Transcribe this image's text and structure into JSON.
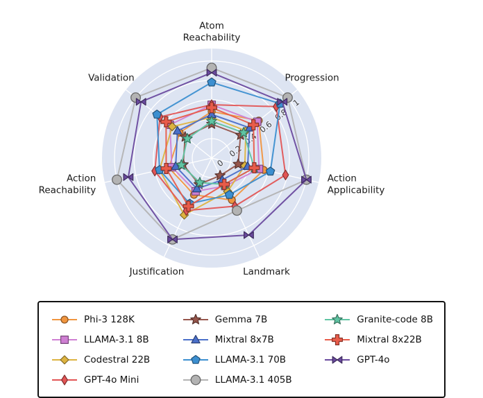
{
  "chart_data": {
    "type": "radar",
    "title": "",
    "categories": [
      "Atom Reachability",
      "Progression",
      "Action Applicability",
      "Landmark",
      "Justification",
      "Action Reachability",
      "Validation"
    ],
    "category_lines": [
      [
        "Atom",
        "Reachability"
      ],
      [
        "Progression"
      ],
      [
        "Action",
        "Applicability"
      ],
      [
        "Landmark"
      ],
      [
        "Justification"
      ],
      [
        "Action",
        "Reachability"
      ],
      [
        "Validation"
      ]
    ],
    "rlim": [
      0,
      1
    ],
    "ticks": [
      0,
      0.2,
      0.4,
      0.6,
      0.8,
      1
    ],
    "tick_labels": [
      "0",
      "0.2",
      "0.4",
      "0.6",
      "0.8",
      "1"
    ],
    "grid": true,
    "background_color": "#dde4f2",
    "grid_color": "#ffffff",
    "series": [
      {
        "name": "Phi-3 128K",
        "marker": "circle",
        "color": "#f0953f",
        "values": [
          0.48,
          0.62,
          0.55,
          0.48,
          0.42,
          0.45,
          0.42
        ]
      },
      {
        "name": "LLAMA-3.1 8B",
        "marker": "square",
        "color": "#cf7fd3",
        "values": [
          0.55,
          0.6,
          0.5,
          0.32,
          0.38,
          0.42,
          0.55
        ]
      },
      {
        "name": "Codestral 22B",
        "marker": "diamond",
        "color": "#ddb340",
        "values": [
          0.42,
          0.45,
          0.35,
          0.38,
          0.65,
          0.55,
          0.52
        ]
      },
      {
        "name": "GPT-4o Mini",
        "marker": "thin_diamond",
        "color": "#e25555",
        "values": [
          0.55,
          0.85,
          0.78,
          0.55,
          0.6,
          0.6,
          0.68
        ]
      },
      {
        "name": "Gemma 7B",
        "marker": "star",
        "color": "#96554b",
        "values": [
          0.35,
          0.38,
          0.28,
          0.2,
          0.3,
          0.3,
          0.35
        ]
      },
      {
        "name": "Mixtral 8x7B",
        "marker": "triangle",
        "color": "#4a6fc9",
        "values": [
          0.45,
          0.5,
          0.38,
          0.25,
          0.35,
          0.38,
          0.45
        ]
      },
      {
        "name": "LLAMA-3.1 70B",
        "marker": "pentagon",
        "color": "#3c8fd0",
        "values": [
          0.78,
          0.9,
          0.62,
          0.42,
          0.52,
          0.55,
          0.72
        ]
      },
      {
        "name": "LLAMA-3.1 405B",
        "marker": "circle_large",
        "color": "#b3b3b3",
        "values": [
          0.93,
          1.0,
          1.0,
          0.6,
          0.93,
          1.0,
          1.0
        ]
      },
      {
        "name": "Granite-code 8B",
        "marker": "star",
        "color": "#5fc4a2",
        "values": [
          0.38,
          0.42,
          0.45,
          0.3,
          0.28,
          0.32,
          0.32
        ]
      },
      {
        "name": "Mixtral 8x22B",
        "marker": "plus",
        "color": "#e85c4a",
        "values": [
          0.52,
          0.55,
          0.45,
          0.3,
          0.55,
          0.48,
          0.6
        ]
      },
      {
        "name": "GPT-4o",
        "marker": "bowtie",
        "color": "#6a4a9e",
        "values": [
          0.88,
          0.93,
          1.0,
          0.88,
          0.93,
          0.88,
          0.93
        ]
      }
    ],
    "legend_position": "bottom",
    "legend_columns": [
      [
        0,
        1,
        2,
        3
      ],
      [
        4,
        5,
        6,
        7
      ],
      [
        8,
        9,
        10
      ]
    ]
  }
}
